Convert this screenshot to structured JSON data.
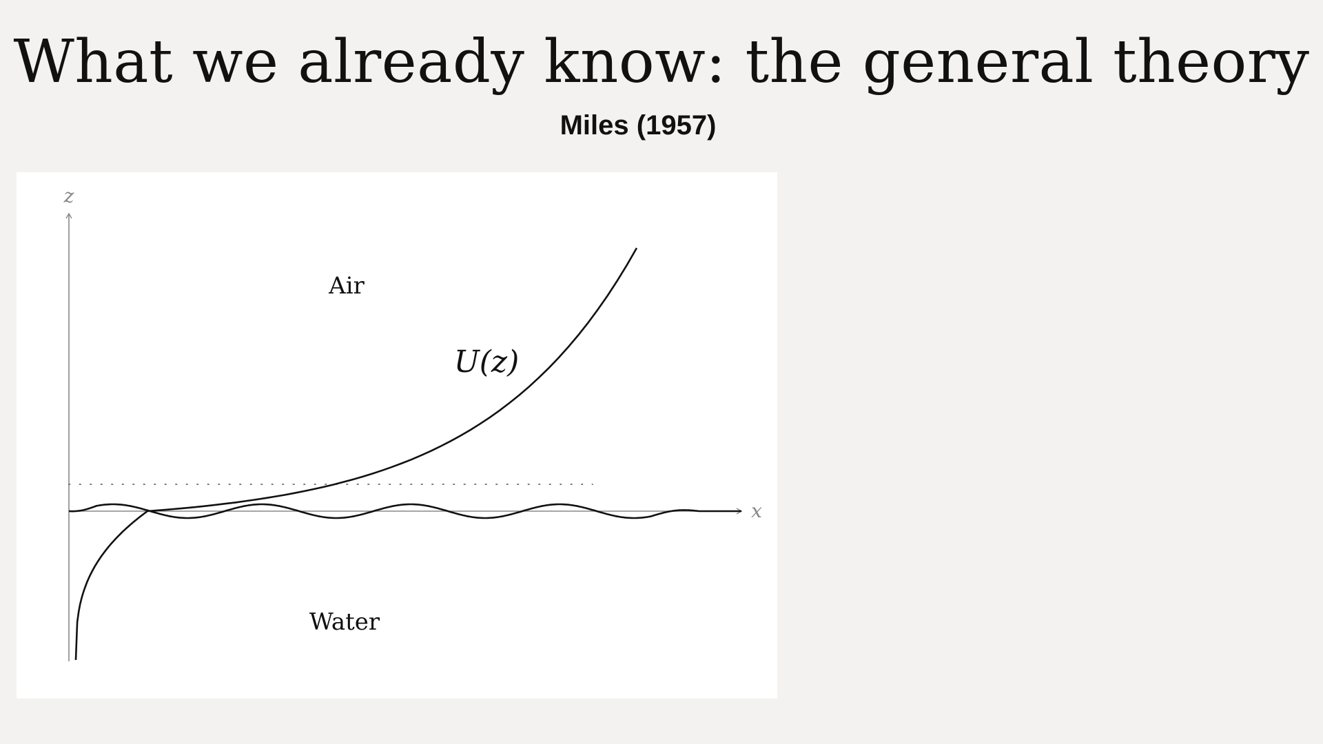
{
  "slide": {
    "title": "What we already know: the general theory",
    "subtitle": "Miles (1957)"
  },
  "diagram": {
    "axis_x_label": "x",
    "axis_z_label": "z",
    "region_air_label": "Air",
    "region_water_label": "Water",
    "profile_label": "U(z)"
  }
}
